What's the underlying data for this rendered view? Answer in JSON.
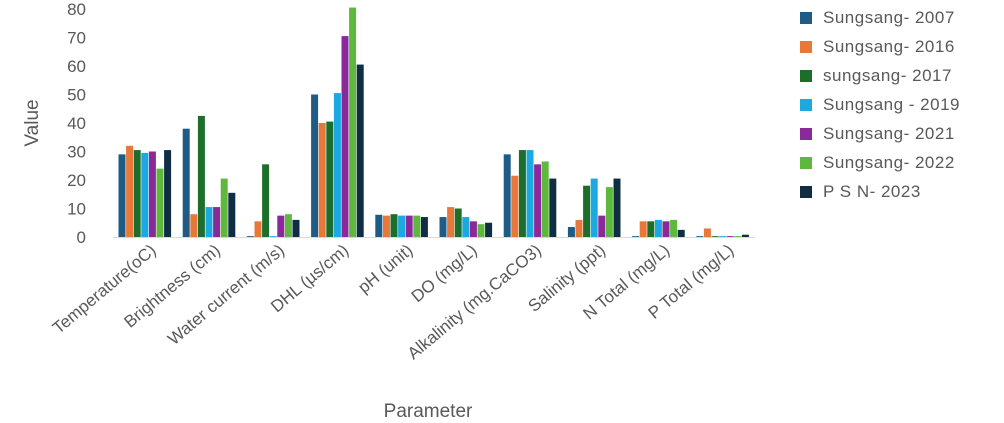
{
  "chart_data": {
    "type": "bar",
    "title": "",
    "xlabel": "Parameter",
    "ylabel": "Value",
    "ylim": [
      0,
      80
    ],
    "yticks": [
      0,
      10,
      20,
      30,
      40,
      50,
      60,
      70,
      80
    ],
    "grid": false,
    "legend_position": "right",
    "categories": [
      "Temperature(oC)",
      "Brightness (cm)",
      "Water current (m/s)",
      "DHL (µs/cm)",
      "pH (unit)",
      "DO (mg/L)",
      "Alkalinity (mg.CaCO3)",
      "Salinity (ppt)",
      "N Total (mg/L)",
      "P Total (mg/L)"
    ],
    "series": [
      {
        "name": "Sungsang- 2007",
        "color": "#1f5c85",
        "values": [
          29,
          38,
          0.3,
          50,
          7.8,
          7,
          29,
          3.5,
          0.3,
          0.3
        ]
      },
      {
        "name": "Sungsang- 2016",
        "color": "#e8773a",
        "values": [
          32,
          8,
          5.5,
          40,
          7.5,
          10.5,
          21.5,
          6,
          5.5,
          3
        ]
      },
      {
        "name": "sungsang- 2017",
        "color": "#1d6e2a",
        "values": [
          30.5,
          42.5,
          25.5,
          40.5,
          8,
          10,
          30.5,
          18,
          5.5,
          0.3
        ]
      },
      {
        "name": "Sungsang - 2019",
        "color": "#1ca8e0",
        "values": [
          29.5,
          10.5,
          0.3,
          50.5,
          7.5,
          7,
          30.5,
          20.5,
          6,
          0.3
        ]
      },
      {
        "name": "Sungsang- 2021",
        "color": "#8a2a9a",
        "values": [
          30,
          10.5,
          7.5,
          70.5,
          7.5,
          5.5,
          25.5,
          7.5,
          5.5,
          0.3
        ]
      },
      {
        "name": "Sungsang- 2022",
        "color": "#5fb83e",
        "values": [
          24,
          20.5,
          8,
          80.5,
          7.5,
          4.5,
          26.5,
          17.5,
          6,
          0.3
        ]
      },
      {
        "name": "P S N- 2023",
        "color": "#0f2e44",
        "values": [
          30.5,
          15.5,
          6,
          60.5,
          7,
          5,
          20.5,
          20.5,
          2.5,
          0.8
        ]
      }
    ]
  }
}
